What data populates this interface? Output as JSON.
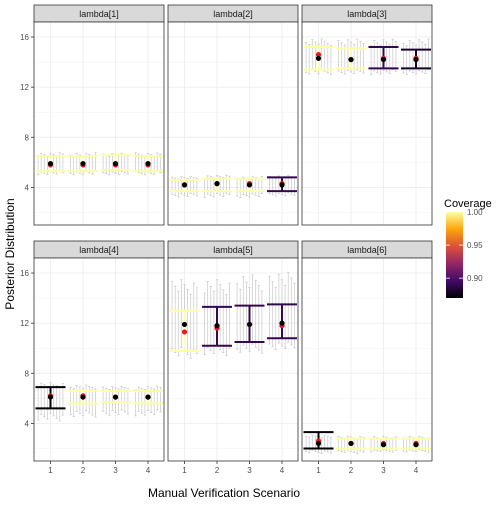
{
  "chart_data": {
    "type": "scatter",
    "xlabel": "Manual Verification Scenario",
    "ylabel": "Posterior Distribution",
    "x_ticks": [
      "1",
      "2",
      "3",
      "4"
    ],
    "y_ticks": [
      4,
      8,
      12,
      16
    ],
    "ylim": [
      1,
      17.2
    ],
    "grid": "on",
    "legend": {
      "title": "Coverage",
      "placement": "right",
      "ticks": [
        "1.00",
        "0.95",
        "0.90"
      ],
      "range": [
        0.87,
        1.0
      ],
      "palette": [
        "#000004",
        "#420a68",
        "#932667",
        "#dd513a",
        "#fca50a",
        "#fcffa4"
      ]
    },
    "panels": [
      {
        "title": "lambda[1]",
        "coverage": [
          1.0,
          1.0,
          1.0,
          1.0
        ],
        "interval_low": [
          5.3,
          5.3,
          5.4,
          5.3
        ],
        "interval_high": [
          6.5,
          6.5,
          6.6,
          6.5
        ],
        "point_black": [
          5.9,
          5.9,
          5.9,
          5.9
        ],
        "point_red": [
          5.8,
          5.8,
          5.8,
          5.8
        ],
        "sim_low": [
          5.0,
          5.0,
          5.0,
          5.0
        ],
        "sim_high": [
          6.8,
          6.8,
          6.8,
          6.8
        ]
      },
      {
        "title": "lambda[2]",
        "coverage": [
          1.0,
          1.0,
          1.0,
          0.89
        ],
        "interval_low": [
          3.7,
          3.7,
          3.7,
          3.7
        ],
        "interval_high": [
          4.6,
          4.7,
          4.7,
          4.8
        ],
        "point_black": [
          4.2,
          4.3,
          4.2,
          4.2
        ],
        "point_red": [
          4.2,
          4.3,
          4.3,
          4.3
        ],
        "sim_low": [
          3.2,
          3.2,
          3.2,
          3.3
        ],
        "sim_high": [
          4.9,
          5.0,
          4.9,
          5.0
        ]
      },
      {
        "title": "lambda[3]",
        "coverage": [
          1.0,
          1.0,
          0.89,
          0.88
        ],
        "interval_low": [
          13.4,
          13.5,
          13.5,
          13.5
        ],
        "interval_high": [
          15.2,
          15.1,
          15.2,
          15.0
        ],
        "point_black": [
          14.3,
          14.2,
          14.2,
          14.2
        ],
        "point_red": [
          14.6,
          14.2,
          14.3,
          14.3
        ],
        "sim_low": [
          13.0,
          13.0,
          13.0,
          13.0
        ],
        "sim_high": [
          15.9,
          15.9,
          15.9,
          15.9
        ]
      },
      {
        "title": "lambda[4]",
        "coverage": [
          0.87,
          1.0,
          1.0,
          1.0
        ],
        "interval_low": [
          5.2,
          5.6,
          5.7,
          5.6
        ],
        "interval_high": [
          6.9,
          6.6,
          6.6,
          6.6
        ],
        "point_black": [
          6.1,
          6.1,
          6.1,
          6.1
        ],
        "point_red": [
          6.2,
          6.2,
          6.1,
          6.1
        ],
        "sim_low": [
          4.2,
          4.5,
          4.6,
          4.6
        ],
        "sim_high": [
          7.3,
          7.1,
          7.0,
          7.0
        ]
      },
      {
        "title": "lambda[5]",
        "coverage": [
          1.0,
          0.89,
          0.89,
          0.89
        ],
        "interval_low": [
          9.8,
          10.2,
          10.5,
          10.8
        ],
        "interval_high": [
          13.0,
          13.3,
          13.4,
          13.5
        ],
        "point_black": [
          11.9,
          11.8,
          11.9,
          12.0
        ],
        "point_red": [
          11.3,
          11.6,
          11.9,
          11.8
        ],
        "sim_low": [
          9.2,
          9.4,
          9.6,
          9.8
        ],
        "sim_high": [
          15.6,
          15.6,
          16.0,
          16.2
        ]
      },
      {
        "title": "lambda[6]",
        "coverage": [
          0.87,
          1.0,
          1.0,
          1.0
        ],
        "interval_low": [
          2.0,
          2.0,
          2.0,
          2.0
        ],
        "interval_high": [
          3.3,
          2.8,
          2.8,
          2.8
        ],
        "point_black": [
          2.4,
          2.4,
          2.3,
          2.3
        ],
        "point_red": [
          2.6,
          2.4,
          2.4,
          2.4
        ],
        "sim_low": [
          1.6,
          1.6,
          1.7,
          1.7
        ],
        "sim_high": [
          3.1,
          3.0,
          3.0,
          3.0
        ]
      }
    ]
  }
}
